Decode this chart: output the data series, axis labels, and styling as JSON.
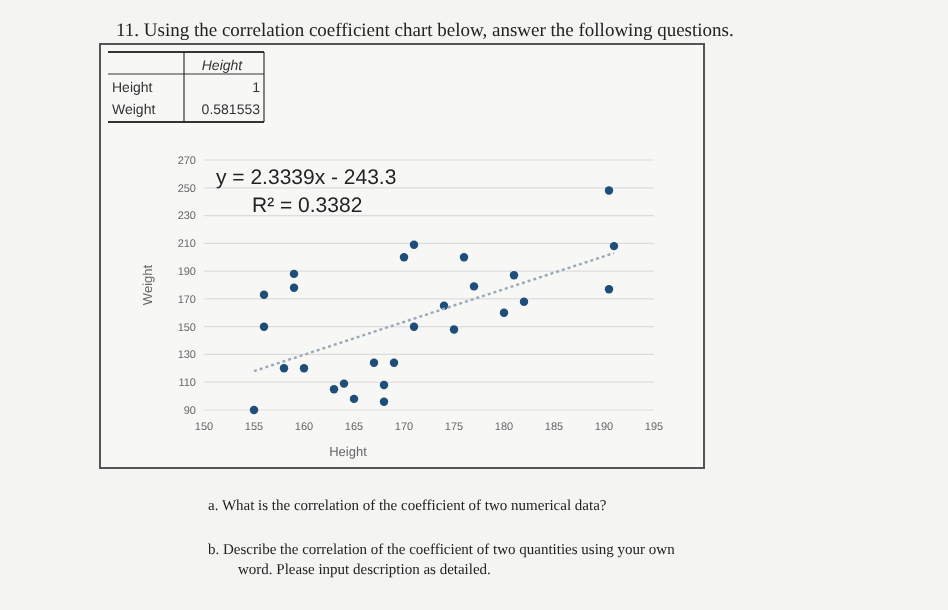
{
  "chart_data": {
    "type": "scatter",
    "title": "11. Using the correlation coefficient chart below, answer the following questions.",
    "xlabel": "Height",
    "ylabel": "Weight",
    "annotations": [
      "Height",
      "Height",
      "1",
      "Weight",
      "0.581553",
      "y = 2.3339x - 243.3",
      "R² = 0.3382",
      "a.   What is the correlation of the coefficient of two numerical data?",
      "b.   Describe the correlation of the coefficient of two quantities using your own word. Please input description as detailed."
    ],
    "xlim": [
      150,
      195
    ],
    "xticks": [
      150,
      155,
      160,
      165,
      170,
      175,
      180,
      185,
      190,
      195
    ],
    "ylim": [
      90,
      270
    ],
    "yticks": [
      90,
      110,
      130,
      150,
      170,
      190,
      210,
      230,
      250,
      270
    ],
    "grid": "y",
    "series": [
      {
        "color": "#1f4e79",
        "marker": "circle",
        "x": [
          155,
          156,
          156,
          158,
          160,
          159,
          159,
          163,
          164,
          165,
          167,
          168,
          168,
          169,
          170,
          171,
          171,
          174,
          175,
          176,
          177,
          180,
          181,
          182,
          190.5,
          190.5,
          191
        ],
        "values": [
          90,
          173,
          150,
          120,
          120,
          188,
          178,
          105,
          109,
          98,
          124,
          108,
          96,
          124,
          200,
          209,
          150,
          165,
          148,
          200,
          179,
          160,
          187,
          168,
          248,
          177,
          208
        ]
      },
      {
        "type": "line",
        "color": "#9aa8b8",
        "line_style": "dotted",
        "x": [
          155,
          191
        ],
        "values": [
          118,
          203
        ]
      }
    ]
  }
}
